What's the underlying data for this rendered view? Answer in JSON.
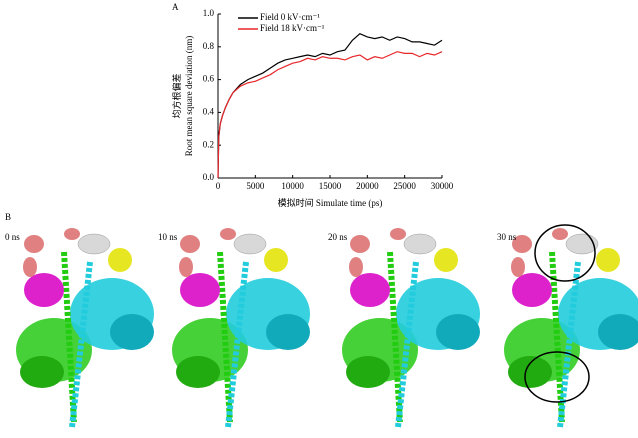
{
  "chart_data": {
    "type": "line",
    "panel_label": "A",
    "ylabel_cn": "均方根偏差",
    "ylabel": "Root mean square deviation (nm)",
    "xlabel": "模拟时间 Simulate time (ps)",
    "x": [
      0,
      100,
      300,
      600,
      1000,
      1500,
      2000,
      3000,
      4000,
      5000,
      6000,
      7000,
      8000,
      9000,
      10000,
      11000,
      12000,
      13000,
      14000,
      15000,
      16000,
      17000,
      18000,
      19000,
      20000,
      21000,
      22000,
      23000,
      24000,
      25000,
      26000,
      27000,
      28000,
      29000,
      30000
    ],
    "series": [
      {
        "name": "Field 0 kV·cm⁻¹",
        "color": "#000000",
        "values": [
          0,
          0.25,
          0.33,
          0.38,
          0.43,
          0.48,
          0.52,
          0.57,
          0.6,
          0.62,
          0.64,
          0.67,
          0.7,
          0.72,
          0.73,
          0.74,
          0.75,
          0.74,
          0.76,
          0.75,
          0.77,
          0.78,
          0.84,
          0.88,
          0.86,
          0.85,
          0.86,
          0.84,
          0.86,
          0.85,
          0.83,
          0.83,
          0.82,
          0.81,
          0.84
        ]
      },
      {
        "name": "Field 18 kV·cm⁻¹",
        "color": "#e8262a",
        "values": [
          0,
          0.25,
          0.33,
          0.38,
          0.43,
          0.48,
          0.52,
          0.56,
          0.58,
          0.59,
          0.61,
          0.63,
          0.66,
          0.68,
          0.7,
          0.71,
          0.73,
          0.72,
          0.74,
          0.73,
          0.73,
          0.72,
          0.74,
          0.75,
          0.72,
          0.74,
          0.73,
          0.75,
          0.77,
          0.76,
          0.76,
          0.74,
          0.76,
          0.75,
          0.77
        ]
      }
    ],
    "xlim": [
      0,
      30000
    ],
    "xticks": [
      0,
      5000,
      10000,
      15000,
      20000,
      25000,
      30000
    ],
    "ylim": [
      0,
      1
    ],
    "yticks": [
      {
        "value": 0,
        "label": "0.0"
      },
      {
        "value": 0.2,
        "label": "0.2"
      },
      {
        "value": 0.4,
        "label": "0.4"
      },
      {
        "value": 0.6,
        "label": "0.6"
      },
      {
        "value": 0.8,
        "label": "0.8"
      },
      {
        "value": 1,
        "label": "1.0"
      }
    ],
    "legend": "upper left",
    "grid": false
  },
  "panel_b": {
    "label": "B",
    "times": [
      "0 ns",
      "10 ns",
      "20 ns",
      "30 ns"
    ]
  }
}
